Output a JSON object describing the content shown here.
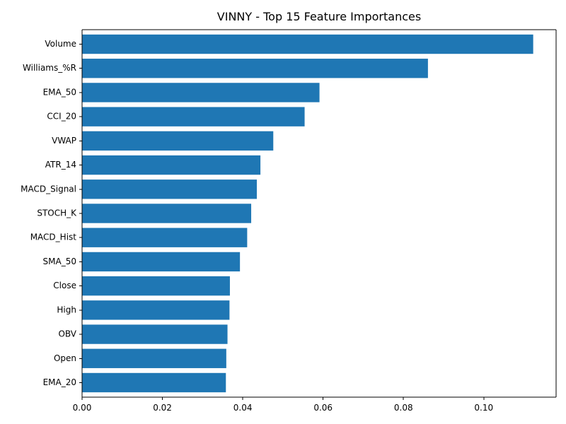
{
  "chart_data": {
    "type": "bar",
    "orientation": "horizontal",
    "title": "VINNY - Top 15 Feature Importances",
    "xlabel": "",
    "ylabel": "",
    "categories": [
      "Volume",
      "Williams_%R",
      "EMA_50",
      "CCI_20",
      "VWAP",
      "ATR_14",
      "MACD_Signal",
      "STOCH_K",
      "MACD_Hist",
      "SMA_50",
      "Close",
      "High",
      "OBV",
      "Open",
      "EMA_20"
    ],
    "values": [
      0.1123,
      0.0861,
      0.0591,
      0.0554,
      0.0476,
      0.0444,
      0.0435,
      0.0421,
      0.0411,
      0.0393,
      0.0368,
      0.0367,
      0.0362,
      0.0359,
      0.0358
    ],
    "xlim": [
      0,
      0.118
    ],
    "xticks": [
      0.0,
      0.02,
      0.04,
      0.06,
      0.08,
      0.1
    ],
    "xtick_labels": [
      "0.00",
      "0.02",
      "0.04",
      "0.06",
      "0.08",
      "0.10"
    ],
    "bar_color": "#1f77b4",
    "grid": false,
    "legend": false
  }
}
